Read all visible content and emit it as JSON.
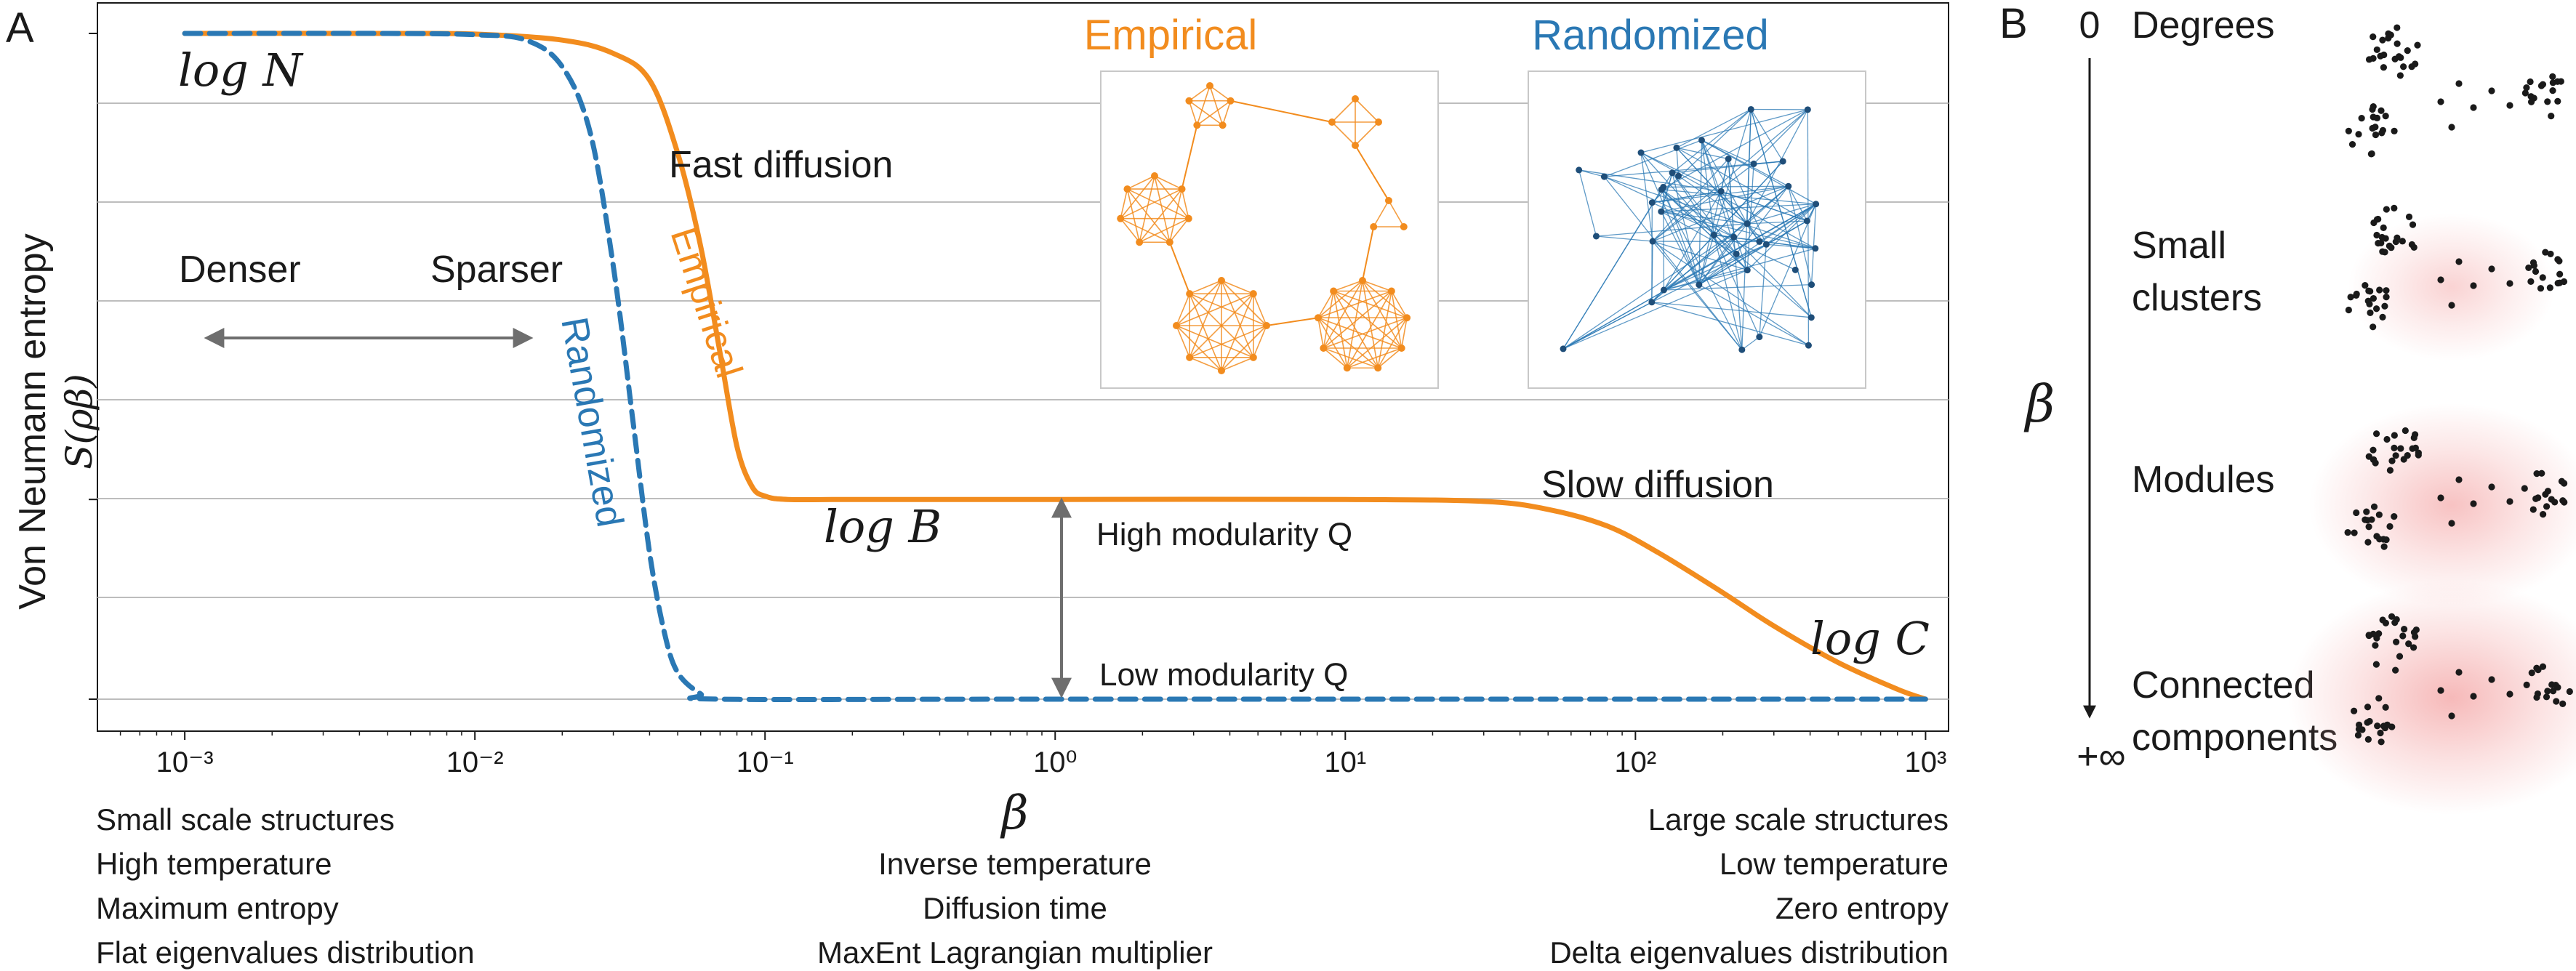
{
  "panel_a": {
    "label": "A",
    "annotations": {
      "log_n": "log N",
      "log_b": "log B",
      "log_c": "log C",
      "fast_diffusion": "Fast diffusion",
      "slow_diffusion": "Slow diffusion",
      "denser": "Denser",
      "sparser": "Sparser",
      "high_modularity": "High modularity Q",
      "low_modularity": "Low modularity Q"
    },
    "insets": {
      "empirical_title": "Empirical",
      "randomized_title": "Randomized"
    },
    "left_captions": [
      "Small scale structures",
      "High temperature",
      "Maximum entropy",
      "Flat eigenvalues distribution"
    ],
    "center_captions": [
      "Inverse temperature",
      "Diffusion time",
      "MaxEnt Lagrangian multiplier"
    ],
    "right_captions": [
      "Large scale structures",
      "Low temperature",
      "Zero entropy",
      "Delta eigenvalues distribution"
    ]
  },
  "panel_b": {
    "label": "B",
    "axis_top": "0",
    "axis_bottom": "+∞",
    "axis_symbol": "β",
    "stages": [
      {
        "line1": "Degrees",
        "line2": ""
      },
      {
        "line1": "Small",
        "line2": "clusters"
      },
      {
        "line1": "Modules",
        "line2": ""
      },
      {
        "line1": "Connected",
        "line2": "components"
      }
    ]
  },
  "colors": {
    "empirical": "#f28c1e",
    "randomized": "#2a78b4",
    "grid": "#bdbdbd",
    "arrow": "#6e6e6e",
    "glow": "#f4a6a6"
  },
  "chart_data": {
    "type": "line",
    "xscale": "log",
    "xlim": [
      0.0005,
      1200
    ],
    "xticks": [
      "10⁻³",
      "10⁻²",
      "10⁻¹",
      "10⁰",
      "10¹",
      "10²",
      "10³"
    ],
    "xtick_values": [
      0.001,
      0.01,
      0.1,
      1,
      10,
      100,
      1000
    ],
    "xlabel": "β",
    "ylabel_line1": "Von Neumann entropy",
    "ylabel_line2": "S(ρβ)",
    "y_levels": {
      "log_N": 1.0,
      "log_B": 0.3,
      "log_C": 0.0
    },
    "grid": true,
    "series": [
      {
        "name": "Empirical",
        "style": "solid",
        "points": [
          [
            0.001,
            1.0
          ],
          [
            0.005,
            1.0
          ],
          [
            0.01,
            0.999
          ],
          [
            0.02,
            0.99
          ],
          [
            0.03,
            0.97
          ],
          [
            0.04,
            0.93
          ],
          [
            0.05,
            0.82
          ],
          [
            0.06,
            0.68
          ],
          [
            0.07,
            0.52
          ],
          [
            0.08,
            0.38
          ],
          [
            0.09,
            0.32
          ],
          [
            0.1,
            0.305
          ],
          [
            0.12,
            0.3
          ],
          [
            0.2,
            0.3
          ],
          [
            1,
            0.3
          ],
          [
            10,
            0.3
          ],
          [
            30,
            0.297
          ],
          [
            50,
            0.285
          ],
          [
            80,
            0.26
          ],
          [
            120,
            0.22
          ],
          [
            200,
            0.16
          ],
          [
            300,
            0.11
          ],
          [
            500,
            0.055
          ],
          [
            800,
            0.015
          ],
          [
            1000,
            0.0
          ]
        ]
      },
      {
        "name": "Randomized",
        "style": "dashed",
        "points": [
          [
            0.001,
            1.0
          ],
          [
            0.005,
            1.0
          ],
          [
            0.01,
            0.998
          ],
          [
            0.015,
            0.99
          ],
          [
            0.02,
            0.95
          ],
          [
            0.025,
            0.85
          ],
          [
            0.03,
            0.65
          ],
          [
            0.035,
            0.42
          ],
          [
            0.04,
            0.22
          ],
          [
            0.045,
            0.1
          ],
          [
            0.05,
            0.04
          ],
          [
            0.06,
            0.008
          ],
          [
            0.07,
            0.0
          ],
          [
            1,
            0.0
          ],
          [
            1000,
            0.0
          ]
        ]
      }
    ]
  }
}
